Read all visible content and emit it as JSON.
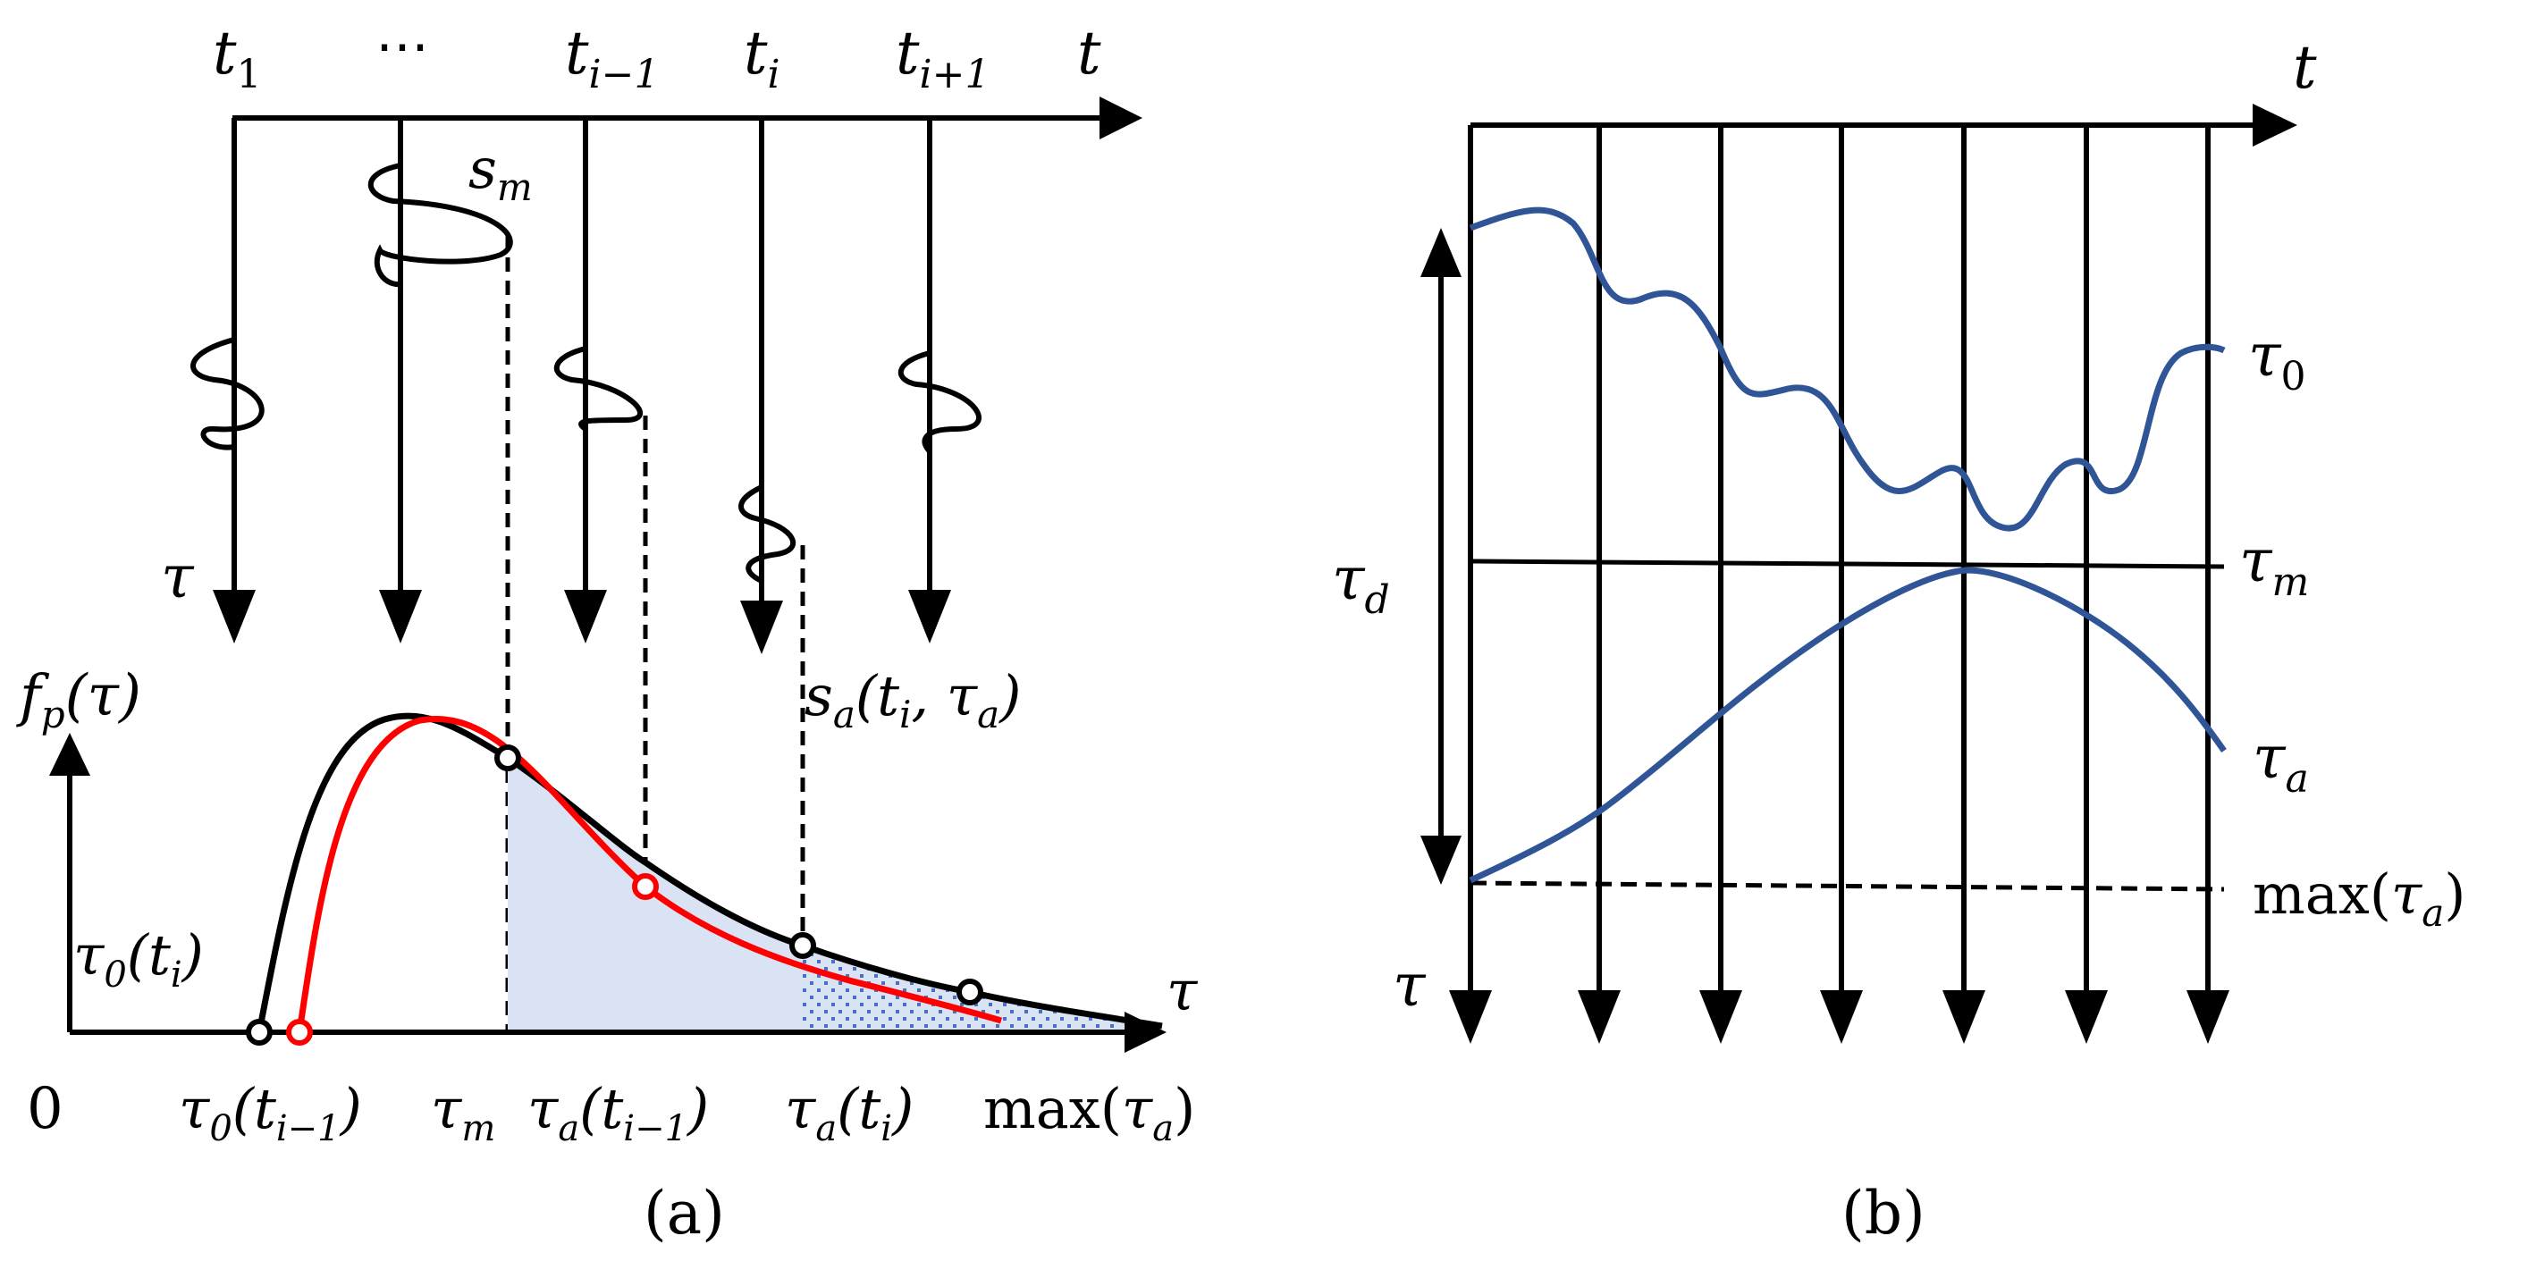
{
  "panel_a": {
    "caption": "(a)",
    "time_axis_label": "t",
    "delay_axis_label": "τ",
    "tick_labels": [
      {
        "base": "t",
        "sub": "1"
      },
      {
        "base": "⋯",
        "sub": ""
      },
      {
        "base": "t",
        "sub": "i−1"
      },
      {
        "base": "t",
        "sub": "i"
      },
      {
        "base": "t",
        "sub": "i+1"
      }
    ],
    "sm_label": {
      "base": "s",
      "sub": "m"
    },
    "sa_label": {
      "base": "s",
      "sub": "a",
      "tail": "(t",
      "tail_sub": "i",
      "tail_end": ", τ",
      "tail_sub2": "a",
      "close": ")"
    },
    "pdf_label": {
      "base": "f",
      "sub": "p",
      "tail": "(τ)"
    },
    "tau0_ti_label": {
      "base": "τ",
      "sub": "0",
      "tail": "(t",
      "tail_sub": "i",
      "close": ")"
    },
    "origin_label": "0",
    "bottom_labels": {
      "tau0_tim1": {
        "base": "τ",
        "sub": "0",
        "tail": "(t",
        "tail_sub": "i−1",
        "close": ")"
      },
      "tau_m": {
        "base": "τ",
        "sub": "m"
      },
      "taua_tim1": {
        "base": "τ",
        "sub": "a",
        "tail": "(t",
        "tail_sub": "i−1",
        "close": ")"
      },
      "taua_ti": {
        "base": "τ",
        "sub": "a",
        "tail": "(t",
        "tail_sub": "i",
        "close": ")"
      },
      "max_taua": {
        "prefix": "max(",
        "base": "τ",
        "sub": "a",
        "close": ")"
      }
    },
    "colors": {
      "axes": "#000000",
      "red_curve": "#ff0000",
      "shade": "#dae3f3",
      "dots": "#4472c4"
    }
  },
  "panel_b": {
    "caption": "(b)",
    "time_axis_label": "t",
    "delay_axis_label": "τ",
    "tau0_label": {
      "base": "τ",
      "sub": "0"
    },
    "taum_label": {
      "base": "τ",
      "sub": "m"
    },
    "taua_label": {
      "base": "τ",
      "sub": "a"
    },
    "taud_label": {
      "base": "τ",
      "sub": "d"
    },
    "max_label": {
      "prefix": "max(",
      "base": "τ",
      "sub": "a",
      "close": ")"
    },
    "colors": {
      "curves": "#2f5597",
      "axes": "#000000"
    }
  }
}
